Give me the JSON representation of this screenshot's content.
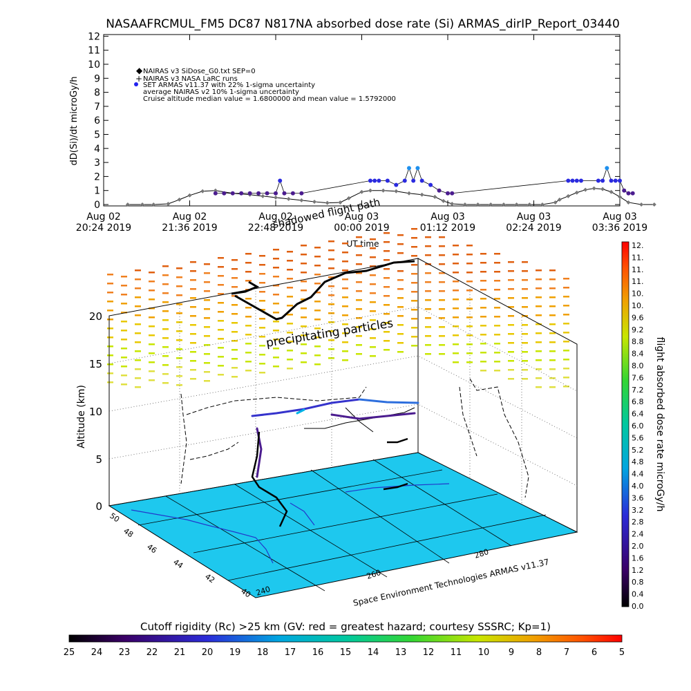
{
  "title": "NASAAFRCMUL_FM5 DC87 N817NA absorbed dose rate (Si) ARMAS_dirIP_Report_03440",
  "chart_data": [
    {
      "type": "line",
      "ylabel": "dD(Si)/dt microGy/h",
      "xlabel": "UT time",
      "ylim": [
        0,
        12
      ],
      "yticks": [
        "0",
        "1",
        "2",
        "3",
        "4",
        "5",
        "6",
        "7",
        "8",
        "9",
        "10",
        "11",
        "12"
      ],
      "xticks": [
        {
          "line1": "Aug 02",
          "line2": "20:24 2019"
        },
        {
          "line1": "Aug 02",
          "line2": "21:36 2019"
        },
        {
          "line1": "Aug 02",
          "line2": "22:48 2019"
        },
        {
          "line1": "Aug 03",
          "line2": "00:00 2019"
        },
        {
          "line1": "Aug 03",
          "line2": "01:12 2019"
        },
        {
          "line1": "Aug 03",
          "line2": "02:24 2019"
        },
        {
          "line1": "Aug 03",
          "line2": "03:36 2019"
        }
      ],
      "legend": [
        "NAIRAS v3 SiDose_G0.txt SEP=0",
        "NAIRAS v3 NASA LaRC runs",
        "SET ARMAS v11.37 with 22% 1-sigma uncertainty",
        "average NAIRAS v2 10% 1-sigma uncertainty",
        "Cruise altitude median value = 1.6800000 and mean value = 1.5792000"
      ],
      "series": [
        {
          "name": "NAIRAS v3 SiDose_G0.txt SEP=0",
          "x": [
            0.28,
            0.45,
            0.58,
            0.75,
            0.88,
            1.0,
            1.15,
            1.3,
            1.5,
            1.7,
            1.85,
            2.0,
            2.15,
            2.3,
            2.45,
            2.6,
            2.75,
            2.85,
            3.0,
            3.1,
            3.25,
            3.4,
            3.55,
            3.7,
            3.85,
            3.95,
            4.05,
            4.2,
            4.35,
            4.5,
            4.65,
            4.8,
            4.95,
            5.1,
            5.25,
            5.3,
            5.4,
            5.5,
            5.6,
            5.7,
            5.8,
            5.9,
            6.0,
            6.1,
            6.25,
            6.4
          ],
          "y": [
            0,
            0,
            0,
            0.05,
            0.35,
            0.65,
            0.95,
            1.0,
            0.8,
            0.7,
            0.6,
            0.5,
            0.4,
            0.3,
            0.2,
            0.12,
            0.15,
            0.45,
            0.9,
            1.0,
            1.0,
            0.95,
            0.8,
            0.7,
            0.55,
            0.25,
            0.05,
            0,
            0,
            0,
            0,
            0,
            0,
            0,
            0.15,
            0.35,
            0.6,
            0.85,
            1.05,
            1.15,
            1.1,
            0.9,
            0.55,
            0.15,
            0,
            0
          ]
        },
        {
          "name": "SET ARMAS v11.37 with 22% 1-sigma uncertainty",
          "x": [
            1.3,
            1.4,
            1.5,
            1.6,
            1.7,
            1.8,
            1.9,
            2.0,
            2.05,
            2.1,
            2.2,
            2.3,
            3.1,
            3.15,
            3.2,
            3.3,
            3.4,
            3.5,
            3.55,
            3.6,
            3.65,
            3.7,
            3.8,
            3.9,
            4.0,
            4.05,
            5.4,
            5.45,
            5.5,
            5.55,
            5.75,
            5.8,
            5.85,
            5.9,
            5.95,
            6.0,
            6.05,
            6.1,
            6.15
          ],
          "y": [
            0.8,
            0.8,
            0.8,
            0.8,
            0.8,
            0.8,
            0.8,
            0.8,
            1.7,
            0.8,
            0.8,
            0.8,
            1.7,
            1.7,
            1.7,
            1.7,
            1.4,
            1.7,
            2.6,
            1.7,
            2.6,
            1.7,
            1.4,
            1.0,
            0.8,
            0.8,
            1.7,
            1.7,
            1.7,
            1.7,
            1.7,
            1.7,
            2.6,
            1.7,
            1.7,
            1.7,
            1.0,
            0.8,
            0.8
          ]
        }
      ]
    },
    {
      "type": "scatter",
      "ylabel": "Altitude (km)",
      "zticks": [
        "0",
        "5",
        "10",
        "15",
        "20"
      ],
      "lat_ticks": [
        "50",
        "48",
        "46",
        "44",
        "42",
        "40"
      ],
      "lon_ticks": [
        "240",
        "260",
        "280"
      ],
      "annotations": [
        "precipitating particles",
        "shadowed flight path"
      ],
      "credit": "Space Environment Technologies ARMAS v11.37"
    },
    {
      "type": "heatmap",
      "colorbar_label": "flight absorbed dose rate microGy/h",
      "colorbar_ticks": [
        "12.",
        "11.",
        "11.",
        "11.",
        "10.",
        "10.",
        "9.6",
        "9.2",
        "8.8",
        "8.4",
        "8.0",
        "7.6",
        "7.2",
        "6.8",
        "6.4",
        "6.0",
        "5.6",
        "5.2",
        "4.8",
        "4.4",
        "4.0",
        "3.6",
        "3.2",
        "2.8",
        "2.4",
        "2.0",
        "1.6",
        "1.2",
        "0.8",
        "0.4",
        "0.0"
      ]
    },
    {
      "type": "heatmap",
      "colorbar_label": "Cutoff rigidity (Rc) >25 km (GV: red = greatest hazard; courtesy SSSRC; Kp=1)",
      "colorbar_ticks": [
        "25",
        "24",
        "23",
        "22",
        "21",
        "20",
        "19",
        "18",
        "17",
        "16",
        "15",
        "14",
        "13",
        "12",
        "11",
        "10",
        "9",
        "8",
        "7",
        "6",
        "5"
      ]
    }
  ]
}
